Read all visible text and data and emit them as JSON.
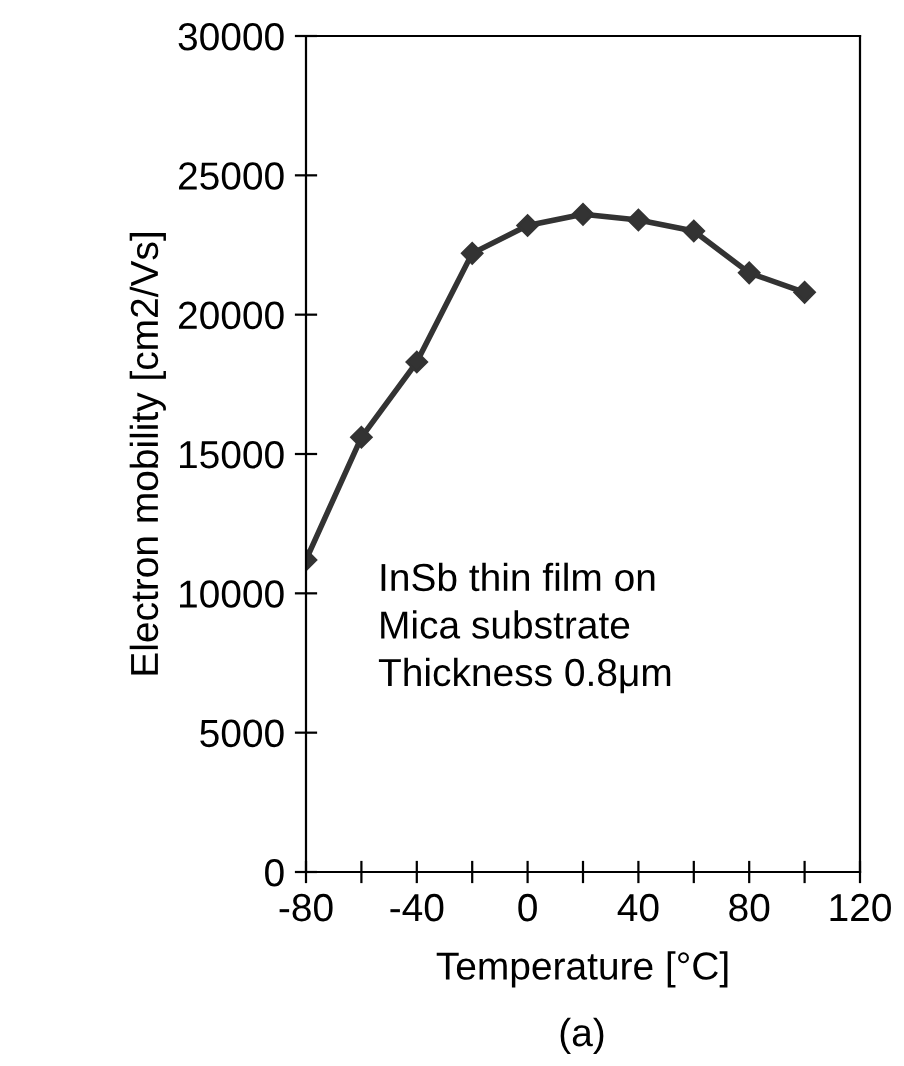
{
  "chart_data": {
    "type": "line",
    "xlabel": "Temperature [°C]",
    "ylabel": "Electron mobility [cm2/Vs]",
    "x": [
      -80,
      -60,
      -40,
      -20,
      0,
      20,
      40,
      60,
      80,
      100
    ],
    "values": [
      11200,
      15600,
      18300,
      22200,
      23200,
      23600,
      23400,
      23000,
      21500,
      20800
    ],
    "color": "#333333",
    "marker": "diamond",
    "line_style": "solid",
    "grid": false,
    "xlim": [
      -80,
      120
    ],
    "ylim": [
      0,
      30000
    ],
    "xticks": [
      -80,
      {
        "value": -60,
        "label": null
      },
      -40,
      {
        "value": -20,
        "label": null
      },
      0,
      {
        "value": 20,
        "label": null
      },
      40,
      {
        "value": 60,
        "label": null
      },
      80,
      {
        "value": 100,
        "label": null
      },
      120
    ],
    "yticks": [
      0,
      5000,
      10000,
      15000,
      20000,
      25000,
      30000
    ],
    "annotations": [
      {
        "text": "InSb thin film on\nMica substrate\nThickness 0.8μm"
      },
      "(a)"
    ]
  }
}
